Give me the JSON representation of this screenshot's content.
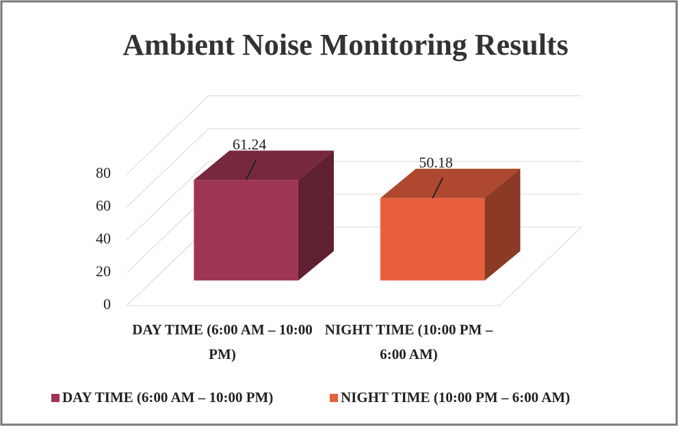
{
  "chart_data": {
    "type": "bar3d",
    "title": "Ambient Noise Monitoring Results",
    "categories": [
      "DAY TIME (6:00 AM – 10:00 PM)",
      "NIGHT TIME (10:00 PM – 6:00 AM)"
    ],
    "values": [
      61.24,
      50.18
    ],
    "colors": [
      "#9e3552",
      "#e8603e"
    ],
    "ylim": [
      0,
      80
    ],
    "yticks": [
      0,
      20,
      40,
      60,
      80
    ],
    "grid": true,
    "legend": "bottom"
  }
}
